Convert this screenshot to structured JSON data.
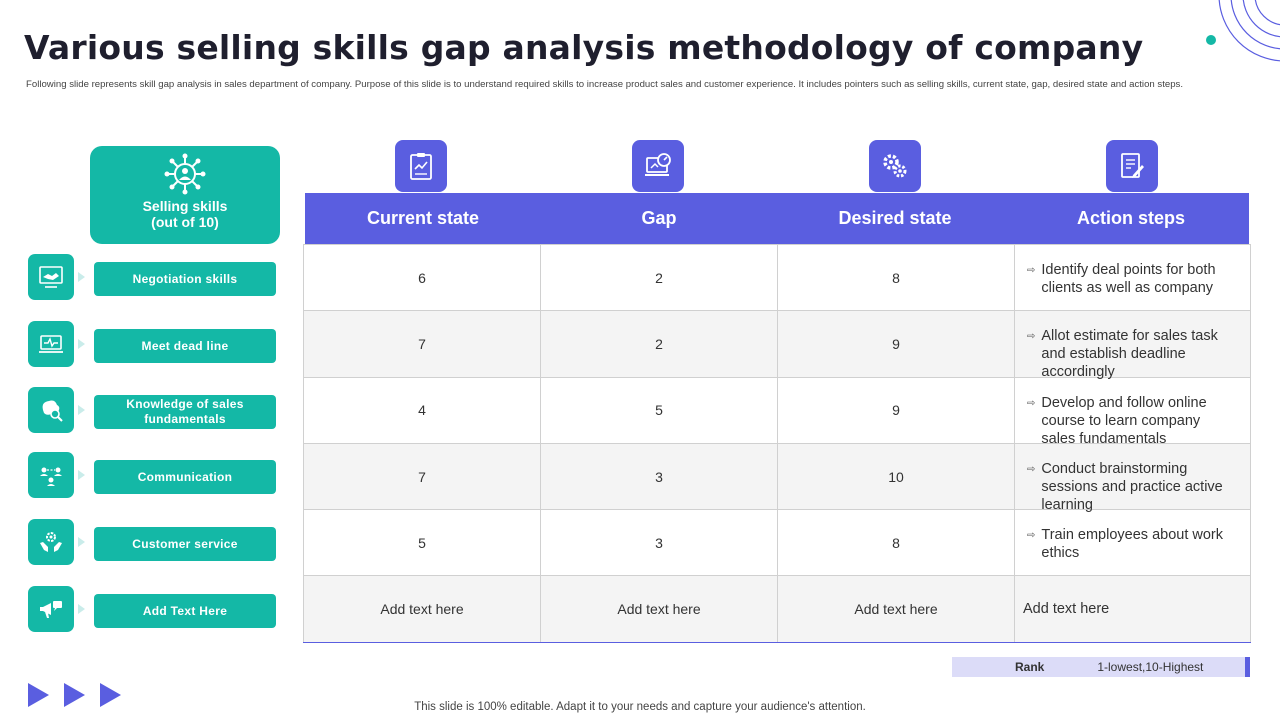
{
  "title": "Various selling skills gap analysis methodology of company",
  "subtitle": "Following slide represents skill gap analysis in sales department of company. Purpose of this slide is to understand required skills to increase product sales and customer experience. It includes pointers such as selling skills, current state, gap, desired state and action steps.",
  "skills_header": {
    "label": "Selling skills\n(out of 10)",
    "icon": "network-people-icon"
  },
  "skills": [
    {
      "label": "Negotiation  skills",
      "icon": "handshake-icon"
    },
    {
      "label": "Meet dead line",
      "icon": "laptop-pulse-icon"
    },
    {
      "label": "Knowledge of sales fundamentals",
      "icon": "brain-search-icon"
    },
    {
      "label": "Communication",
      "icon": "people-chat-icon"
    },
    {
      "label": "Customer service",
      "icon": "hands-gear-icon"
    },
    {
      "label": "Add Text Here",
      "icon": "megaphone-icon"
    }
  ],
  "columns": [
    {
      "label": "Current state",
      "icon": "clipboard-icon"
    },
    {
      "label": "Gap",
      "icon": "laptop-gauge-icon"
    },
    {
      "label": "Desired state",
      "icon": "gears-icon"
    },
    {
      "label": "Action steps",
      "icon": "document-pen-icon"
    }
  ],
  "rows": [
    {
      "current": "6",
      "gap": "2",
      "desired": "8",
      "action": "Identify deal points for both clients as well as company"
    },
    {
      "current": "7",
      "gap": "2",
      "desired": "9",
      "action": "Allot estimate for sales task and establish deadline accordingly"
    },
    {
      "current": "4",
      "gap": "5",
      "desired": "9",
      "action": "Develop and follow online course to learn company sales fundamentals"
    },
    {
      "current": "7",
      "gap": "3",
      "desired": "10",
      "action": "Conduct brainstorming sessions and practice active learning"
    },
    {
      "current": "5",
      "gap": "3",
      "desired": "8",
      "action": "Train employees about work ethics"
    },
    {
      "current": "Add text here",
      "gap": "Add text here",
      "desired": "Add text here",
      "action": "Add text here"
    }
  ],
  "rank": {
    "label": "Rank",
    "value": "1-lowest,10-Highest"
  },
  "footer": "This slide is 100% editable. Adapt it to your needs and capture your audience's attention.",
  "colors": {
    "teal": "#14b8a6",
    "indigo": "#5a5ee0"
  }
}
